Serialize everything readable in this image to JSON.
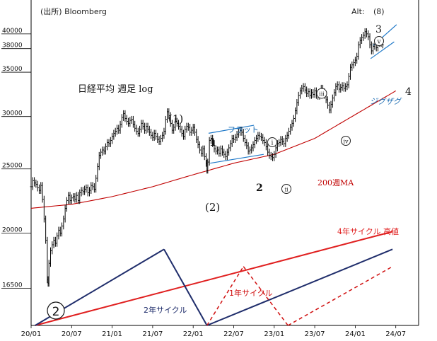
{
  "source": "(出所) Bloomberg",
  "alt_label": "Alt:",
  "alt_value": "(8)",
  "title": "日経平均  週足 log",
  "colors": {
    "price": "#000000",
    "ma": "#c00000",
    "cycle_blue": "#1f2d6b",
    "cycle_red": "#e02020",
    "dashed": "#d01010",
    "channel": "#1e78c8",
    "annot_blue": "#1e6eb4",
    "grid": "#000000"
  },
  "chart_data": {
    "type": "line",
    "scale": "log",
    "ylim": [
      14500,
      45000
    ],
    "xlim": [
      "2020-01",
      "2024-08"
    ],
    "x_ticks": [
      {
        "t": 0,
        "label": "20/01"
      },
      {
        "t": 0.5,
        "label": "20/07"
      },
      {
        "t": 1.0,
        "label": "21/01"
      },
      {
        "t": 1.5,
        "label": "21/07"
      },
      {
        "t": 2.0,
        "label": "22/01"
      },
      {
        "t": 2.5,
        "label": "22/07"
      },
      {
        "t": 3.0,
        "label": "23/01"
      },
      {
        "t": 3.5,
        "label": "23/07"
      },
      {
        "t": 4.0,
        "label": "24/01"
      },
      {
        "t": 4.5,
        "label": "24/07"
      }
    ],
    "y_ticks": [
      16500,
      20000,
      25000,
      30000,
      35000,
      38000,
      40000
    ],
    "weekly_close": [
      [
        0.0,
        23500
      ],
      [
        0.02,
        24000
      ],
      [
        0.04,
        23800
      ],
      [
        0.06,
        23700
      ],
      [
        0.08,
        23400
      ],
      [
        0.1,
        23200
      ],
      [
        0.12,
        23600
      ],
      [
        0.14,
        22500
      ],
      [
        0.16,
        21000
      ],
      [
        0.18,
        19500
      ],
      [
        0.2,
        17000
      ],
      [
        0.21,
        16800
      ],
      [
        0.22,
        18000
      ],
      [
        0.24,
        18800
      ],
      [
        0.26,
        19200
      ],
      [
        0.28,
        19500
      ],
      [
        0.3,
        19300
      ],
      [
        0.32,
        19800
      ],
      [
        0.34,
        20200
      ],
      [
        0.36,
        20000
      ],
      [
        0.38,
        20500
      ],
      [
        0.4,
        21000
      ],
      [
        0.42,
        21800
      ],
      [
        0.44,
        22400
      ],
      [
        0.46,
        22800
      ],
      [
        0.48,
        22400
      ],
      [
        0.5,
        22600
      ],
      [
        0.52,
        22700
      ],
      [
        0.54,
        22500
      ],
      [
        0.56,
        22800
      ],
      [
        0.58,
        22400
      ],
      [
        0.6,
        23000
      ],
      [
        0.62,
        23200
      ],
      [
        0.64,
        23100
      ],
      [
        0.66,
        23300
      ],
      [
        0.68,
        23400
      ],
      [
        0.7,
        23000
      ],
      [
        0.72,
        23200
      ],
      [
        0.74,
        23600
      ],
      [
        0.76,
        23500
      ],
      [
        0.78,
        23300
      ],
      [
        0.8,
        24200
      ],
      [
        0.82,
        25200
      ],
      [
        0.84,
        26200
      ],
      [
        0.86,
        26500
      ],
      [
        0.88,
        26700
      ],
      [
        0.9,
        26600
      ],
      [
        0.92,
        27000
      ],
      [
        0.94,
        27400
      ],
      [
        0.96,
        27300
      ],
      [
        0.98,
        27600
      ],
      [
        1.0,
        28000
      ],
      [
        1.02,
        28300
      ],
      [
        1.04,
        28500
      ],
      [
        1.06,
        28800
      ],
      [
        1.08,
        28600
      ],
      [
        1.1,
        29200
      ],
      [
        1.12,
        29900
      ],
      [
        1.14,
        30300
      ],
      [
        1.16,
        29800
      ],
      [
        1.18,
        29500
      ],
      [
        1.2,
        29300
      ],
      [
        1.22,
        29600
      ],
      [
        1.24,
        29700
      ],
      [
        1.26,
        29200
      ],
      [
        1.28,
        28800
      ],
      [
        1.3,
        28500
      ],
      [
        1.32,
        28300
      ],
      [
        1.34,
        28700
      ],
      [
        1.36,
        29300
      ],
      [
        1.38,
        29000
      ],
      [
        1.4,
        28600
      ],
      [
        1.42,
        29000
      ],
      [
        1.44,
        28700
      ],
      [
        1.46,
        28400
      ],
      [
        1.48,
        28100
      ],
      [
        1.5,
        27900
      ],
      [
        1.52,
        28300
      ],
      [
        1.54,
        28000
      ],
      [
        1.56,
        27700
      ],
      [
        1.58,
        27500
      ],
      [
        1.6,
        27800
      ],
      [
        1.62,
        28100
      ],
      [
        1.64,
        28500
      ],
      [
        1.66,
        29700
      ],
      [
        1.68,
        30500
      ],
      [
        1.7,
        30100
      ],
      [
        1.72,
        29300
      ],
      [
        1.74,
        28600
      ],
      [
        1.76,
        28900
      ],
      [
        1.78,
        29500
      ],
      [
        1.8,
        29300
      ],
      [
        1.82,
        29000
      ],
      [
        1.84,
        28700
      ],
      [
        1.86,
        28300
      ],
      [
        1.88,
        28000
      ],
      [
        1.9,
        28700
      ],
      [
        1.92,
        29000
      ],
      [
        1.94,
        28900
      ],
      [
        1.96,
        28400
      ],
      [
        1.98,
        28600
      ],
      [
        2.0,
        28900
      ],
      [
        2.02,
        28400
      ],
      [
        2.04,
        27700
      ],
      [
        2.06,
        27200
      ],
      [
        2.08,
        26700
      ],
      [
        2.1,
        26400
      ],
      [
        2.12,
        26800
      ],
      [
        2.14,
        26100
      ],
      [
        2.16,
        25500
      ],
      [
        2.17,
        24900
      ],
      [
        2.18,
        25600
      ],
      [
        2.2,
        27600
      ],
      [
        2.22,
        27800
      ],
      [
        2.24,
        27300
      ],
      [
        2.26,
        26800
      ],
      [
        2.28,
        26600
      ],
      [
        2.3,
        26700
      ],
      [
        2.32,
        26400
      ],
      [
        2.34,
        26800
      ],
      [
        2.36,
        26500
      ],
      [
        2.38,
        26300
      ],
      [
        2.4,
        26100
      ],
      [
        2.42,
        26500
      ],
      [
        2.44,
        26900
      ],
      [
        2.46,
        27300
      ],
      [
        2.48,
        27800
      ],
      [
        2.5,
        27700
      ],
      [
        2.52,
        27900
      ],
      [
        2.54,
        28200
      ],
      [
        2.56,
        28400
      ],
      [
        2.58,
        28600
      ],
      [
        2.6,
        28400
      ],
      [
        2.62,
        27800
      ],
      [
        2.64,
        27400
      ],
      [
        2.66,
        27100
      ],
      [
        2.68,
        26600
      ],
      [
        2.7,
        26700
      ],
      [
        2.72,
        26900
      ],
      [
        2.74,
        27200
      ],
      [
        2.76,
        27600
      ],
      [
        2.78,
        27800
      ],
      [
        2.8,
        28100
      ],
      [
        2.82,
        28000
      ],
      [
        2.84,
        27900
      ],
      [
        2.86,
        27600
      ],
      [
        2.88,
        27400
      ],
      [
        2.9,
        27000
      ],
      [
        2.92,
        26500
      ],
      [
        2.94,
        26200
      ],
      [
        2.96,
        26100
      ],
      [
        2.98,
        26000
      ],
      [
        3.0,
        26300
      ],
      [
        3.02,
        26900
      ],
      [
        3.04,
        27300
      ],
      [
        3.06,
        27400
      ],
      [
        3.08,
        27700
      ],
      [
        3.1,
        27500
      ],
      [
        3.12,
        27300
      ],
      [
        3.14,
        27800
      ],
      [
        3.16,
        28100
      ],
      [
        3.18,
        28500
      ],
      [
        3.2,
        28900
      ],
      [
        3.22,
        29300
      ],
      [
        3.24,
        29800
      ],
      [
        3.26,
        30600
      ],
      [
        3.28,
        31500
      ],
      [
        3.3,
        32300
      ],
      [
        3.32,
        32800
      ],
      [
        3.34,
        33100
      ],
      [
        3.36,
        33300
      ],
      [
        3.38,
        32900
      ],
      [
        3.4,
        32500
      ],
      [
        3.42,
        32700
      ],
      [
        3.44,
        32300
      ],
      [
        3.46,
        32600
      ],
      [
        3.48,
        32400
      ],
      [
        3.5,
        32800
      ],
      [
        3.52,
        32300
      ],
      [
        3.54,
        32200
      ],
      [
        3.56,
        32500
      ],
      [
        3.58,
        33100
      ],
      [
        3.6,
        32700
      ],
      [
        3.62,
        32300
      ],
      [
        3.64,
        31800
      ],
      [
        3.66,
        31200
      ],
      [
        3.68,
        30700
      ],
      [
        3.7,
        31300
      ],
      [
        3.72,
        32000
      ],
      [
        3.74,
        32600
      ],
      [
        3.76,
        33300
      ],
      [
        3.78,
        33500
      ],
      [
        3.8,
        33000
      ],
      [
        3.82,
        33200
      ],
      [
        3.84,
        33400
      ],
      [
        3.86,
        33100
      ],
      [
        3.88,
        33300
      ],
      [
        3.9,
        33500
      ],
      [
        3.92,
        34500
      ],
      [
        3.94,
        35600
      ],
      [
        3.96,
        35900
      ],
      [
        3.98,
        36200
      ],
      [
        4.0,
        36500
      ],
      [
        4.02,
        37000
      ],
      [
        4.04,
        38500
      ],
      [
        4.06,
        39100
      ],
      [
        4.08,
        39500
      ],
      [
        4.1,
        39800
      ],
      [
        4.12,
        40300
      ],
      [
        4.14,
        40000
      ],
      [
        4.16,
        39600
      ],
      [
        4.18,
        38500
      ],
      [
        4.2,
        37700
      ],
      [
        4.22,
        38300
      ],
      [
        4.24,
        38600
      ],
      [
        4.26,
        38100
      ],
      [
        4.28,
        38800
      ],
      [
        4.3,
        38700
      ],
      [
        4.32,
        38900
      ],
      [
        4.34,
        38500
      ]
    ],
    "ma_200w": [
      [
        0.0,
        21800
      ],
      [
        0.5,
        22100
      ],
      [
        1.0,
        22700
      ],
      [
        1.5,
        23500
      ],
      [
        2.0,
        24500
      ],
      [
        2.5,
        25500
      ],
      [
        3.0,
        26300
      ],
      [
        3.5,
        27800
      ],
      [
        4.0,
        30200
      ],
      [
        4.5,
        32800
      ]
    ],
    "lines": [
      {
        "id": "cycle4_red",
        "style": "solid",
        "color": "cycle_red",
        "from": [
          0.05,
          14500
        ],
        "to": [
          4.46,
          20100
        ]
      },
      {
        "id": "cycle2_peak_up",
        "style": "solid",
        "color": "cycle_blue",
        "from": [
          0.05,
          14500
        ],
        "to": [
          1.64,
          18900
        ]
      },
      {
        "id": "cycle2_peak_down",
        "style": "solid",
        "color": "cycle_blue",
        "from": [
          1.64,
          18900
        ],
        "to": [
          2.17,
          14500
        ]
      },
      {
        "id": "cycle2_next_up",
        "style": "solid",
        "color": "cycle_blue",
        "from": [
          2.17,
          14500
        ],
        "to": [
          4.46,
          18900
        ]
      },
      {
        "id": "cycle1_a",
        "style": "dashed",
        "color": "dashed",
        "from": [
          2.17,
          14500
        ],
        "to": [
          2.62,
          17800
        ]
      },
      {
        "id": "cycle1_b",
        "style": "dashed",
        "color": "dashed",
        "from": [
          2.62,
          17800
        ],
        "to": [
          3.17,
          14500
        ]
      },
      {
        "id": "cycle1_c",
        "style": "dashed",
        "color": "dashed",
        "from": [
          3.17,
          14500
        ],
        "to": [
          4.46,
          17800
        ]
      },
      {
        "id": "flat_upper",
        "style": "solid",
        "color": "channel",
        "from": [
          2.19,
          28300
        ],
        "to": [
          2.75,
          29100
        ]
      },
      {
        "id": "flat_lower",
        "style": "solid",
        "color": "channel",
        "from": [
          2.21,
          25500
        ],
        "to": [
          2.87,
          26300
        ]
      },
      {
        "id": "zigzag_upper",
        "style": "solid",
        "color": "channel",
        "from": [
          4.22,
          38400
        ],
        "to": [
          4.51,
          41300
        ]
      },
      {
        "id": "zigzag_lower",
        "style": "solid",
        "color": "channel",
        "from": [
          4.19,
          36700
        ],
        "to": [
          4.48,
          38900
        ]
      }
    ]
  },
  "annotations": {
    "wave_1_paren": "(1)",
    "wave_2_paren": "(2)",
    "flat": "フラット",
    "wave_1": "1",
    "wave_2": "2",
    "wave_i": "i",
    "wave_ii": "ii",
    "wave_iii": "iii",
    "wave_iv": "iv",
    "wave_v": "v",
    "wave_3": "3",
    "wave_4": "4",
    "zigzag": "ジグザグ",
    "ma_label": "200週MA",
    "high_label": "4年サイクル 高値",
    "cycle2_label": "2年サイクル",
    "cycle1_label": "1年サイクル",
    "circle2": "2"
  }
}
